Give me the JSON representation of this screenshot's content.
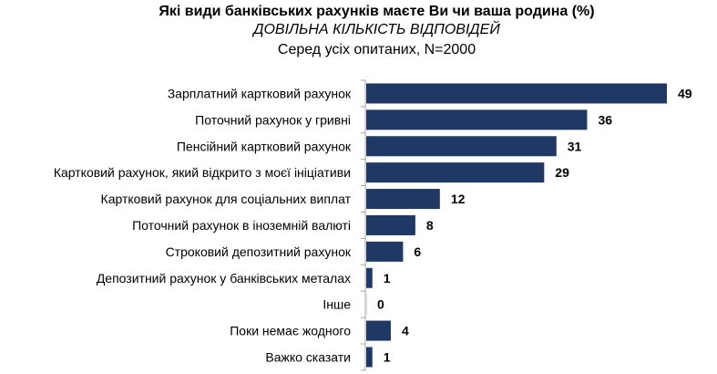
{
  "chart_data": {
    "type": "bar",
    "orientation": "horizontal",
    "title": "Які види банківських рахунків маєте Ви чи ваша родина (%)",
    "subtitle": "ДОВІЛЬНА КІЛЬКІСТЬ ВІДПОВІДЕЙ",
    "note": "Серед усіх опитаних, N=2000",
    "categories": [
      "Зарплатний картковий рахунок",
      "Поточний рахунок у гривні",
      "Пенсійний картковий рахунок",
      "Картковий рахунок, який відкрито з моєї ініціативи",
      "Картковий рахунок для соціальних виплат",
      "Поточний рахунок в іноземній валюті",
      "Строковий депозитний рахунок",
      "Депозитний рахунок у банківських металах",
      "Інше",
      "Поки немає жодного",
      "Важко сказати"
    ],
    "values": [
      49,
      36,
      31,
      29,
      12,
      8,
      6,
      1,
      0,
      4,
      1
    ],
    "bar_color": "#1f3864",
    "xlim": [
      0,
      50
    ],
    "grid": false,
    "legend": "none"
  }
}
